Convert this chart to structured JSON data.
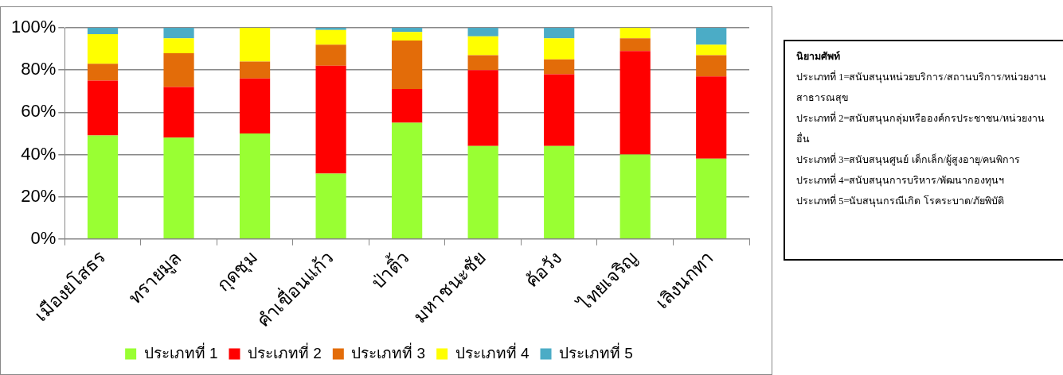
{
  "chart_data": {
    "type": "bar",
    "stacked": true,
    "categories": [
      "เมืองยโสธร",
      "ทรายมูล",
      "กุดชุม",
      "คำเขื่อนแก้ว",
      "ป่าติ้ว",
      "มหาชนะชัย",
      "ค้อวัง",
      "ไทยเจริญ",
      "เลิงนกทา"
    ],
    "series": [
      {
        "name": "ประเภทที่ 1",
        "color": "#99ff33",
        "values": [
          49,
          48,
          50,
          31,
          55,
          44,
          44,
          40,
          38
        ]
      },
      {
        "name": "ประเภทที่ 2",
        "color": "#ff0000",
        "values": [
          26,
          24,
          26,
          51,
          16,
          36,
          34,
          49,
          39
        ]
      },
      {
        "name": "ประเภทที่ 3",
        "color": "#e36c09",
        "values": [
          8,
          16,
          8,
          10,
          23,
          7,
          7,
          6,
          10
        ]
      },
      {
        "name": "ประเภทที่ 4",
        "color": "#ffff00",
        "values": [
          14,
          7,
          16,
          7,
          4,
          9,
          10,
          5,
          5
        ]
      },
      {
        "name": "ประเภทที่ 5",
        "color": "#4bacc6",
        "values": [
          3,
          5,
          0,
          1,
          2,
          4,
          5,
          0,
          8
        ]
      }
    ],
    "ylim": [
      0,
      100
    ],
    "yticks": [
      {
        "value": 0,
        "label": "0%"
      },
      {
        "value": 20,
        "label": "20%"
      },
      {
        "value": 40,
        "label": "40%"
      },
      {
        "value": 60,
        "label": "60%"
      },
      {
        "value": 80,
        "label": "80%"
      },
      {
        "value": 100,
        "label": "100%"
      }
    ],
    "grid": "y",
    "legend": "bottom",
    "annotations": [
      "นิยามศัพท์",
      "ประเภทที่ 1=สนับสนุนหน่วยบริการ/สถานบริการ/หน่วยงานสาธารณสุข",
      "ประเภทที่ 2=สนับสนุนกลุ่มหรือองค์กรประชาชน/หน่วยงานอื่น",
      "ประเภทที่ 3=สนับสนุนศูนย์ เด็กเล็ก/ผู้สูงอายุ/คนพิการ",
      "ประเภทที่ 4=สนับสนุนการบริหาร/พัฒนากองทุนฯ",
      "ประเภทที่ 5=นับสนุนกรณีเกิด โรคระบาด/ภัยพิบัติ"
    ]
  }
}
